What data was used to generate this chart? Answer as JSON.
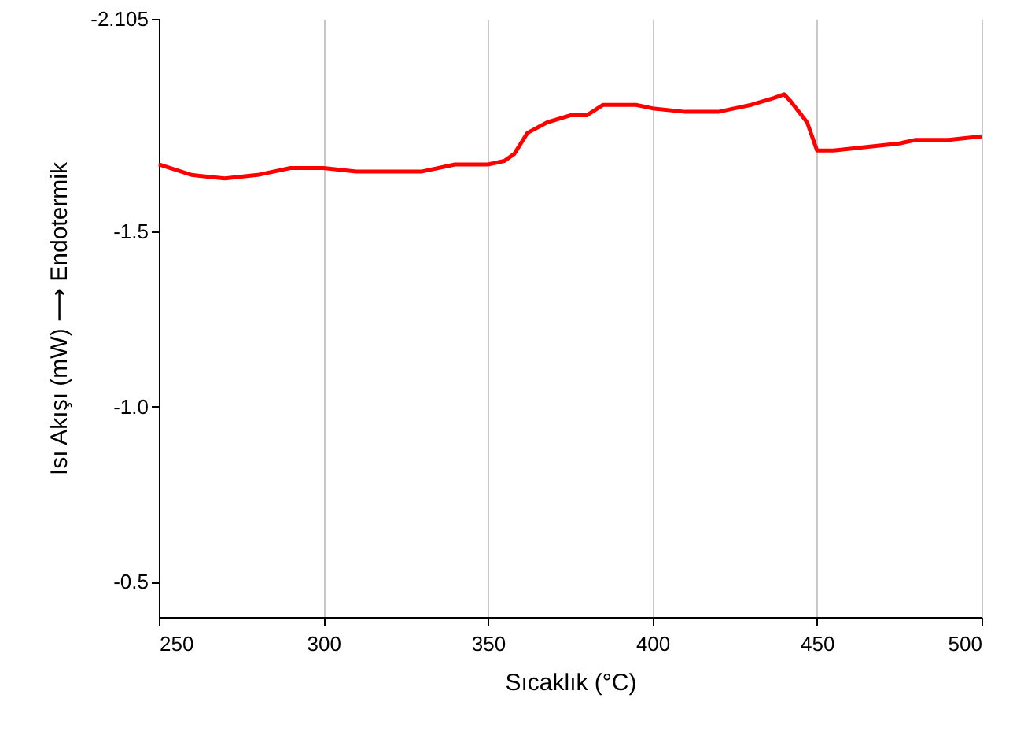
{
  "chart_data": {
    "type": "line",
    "xlabel": "Sıcaklık (°C)",
    "ylabel": "Isı Akışı (mW) ⟶ Endotermik",
    "x": [
      250,
      260,
      270,
      280,
      290,
      300,
      310,
      330,
      340,
      350,
      355,
      358,
      362,
      368,
      375,
      380,
      385,
      390,
      395,
      400,
      410,
      420,
      425,
      430,
      437,
      440,
      442,
      447,
      450,
      455,
      465,
      475,
      480,
      490,
      500
    ],
    "series": [
      {
        "color": "#ff0000",
        "values": [
          -1.69,
          -1.66,
          -1.65,
          -1.66,
          -1.68,
          -1.68,
          -1.67,
          -1.67,
          -1.69,
          -1.69,
          -1.7,
          -1.72,
          -1.78,
          -1.81,
          -1.83,
          -1.83,
          -1.86,
          -1.86,
          -1.86,
          -1.85,
          -1.84,
          -1.84,
          -1.85,
          -1.86,
          -1.88,
          -1.89,
          -1.87,
          -1.81,
          -1.73,
          -1.73,
          -1.74,
          -1.75,
          -1.76,
          -1.76,
          -1.77
        ]
      }
    ],
    "xlim": [
      250,
      500
    ],
    "xticks": [
      250,
      300,
      350,
      400,
      450,
      500
    ],
    "ylim": [
      -0.4,
      -2.105
    ],
    "yticks": [
      {
        "value": -2.105,
        "label": "-2.105"
      },
      {
        "value": -1.5,
        "label": "-1.5"
      },
      {
        "value": -1.0,
        "label": "-1.0"
      },
      {
        "value": -0.5,
        "label": "-0.5"
      }
    ],
    "grid": "x",
    "marker": "none",
    "line_style": "solid"
  }
}
